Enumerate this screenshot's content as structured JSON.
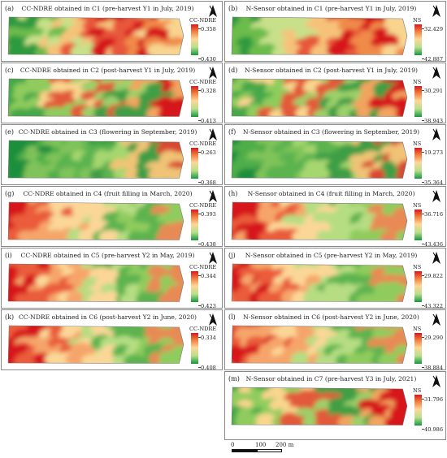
{
  "panels": [
    {
      "label": "(a)",
      "title": "CC-NDRE obtained in C1 (pre-harvest Y1 in July, 2019)",
      "legend": {
        "name": "CC-NDRE",
        "max": "0.358",
        "min": "0.430"
      },
      "palette": "green-left"
    },
    {
      "label": "(b)",
      "title": "N-Sensor obtained in C1 (pre-harvest Y1 in July, 2019)",
      "legend": {
        "name": "NS",
        "max": "32.429",
        "min": "42.887"
      },
      "palette": "green-left"
    },
    {
      "label": "(c)",
      "title": "CC-NDRE obtained in C2 (post-harvest Y1 in July, 2019)",
      "legend": {
        "name": "CC-NDRE",
        "max": "0.328",
        "min": "0.413"
      },
      "palette": "green-mixed"
    },
    {
      "label": "(d)",
      "title": "N-Sensor obtained in C2 (post-harvest Y1 in July, 2019)",
      "legend": {
        "name": "NS",
        "max": "30.291",
        "min": "38.943"
      },
      "palette": "green-mixed"
    },
    {
      "label": "(e)",
      "title": "CC-NDRE obtained in C3 (flowering in September, 2019)",
      "legend": {
        "name": "CC-NDRE",
        "max": "0.263",
        "min": "0.368"
      },
      "palette": "green"
    },
    {
      "label": "(f)",
      "title": "N-Sensor obtained in C3 (flowering  in September, 2019)",
      "legend": {
        "name": "NS",
        "max": "19.273",
        "min": "35.364"
      },
      "palette": "green"
    },
    {
      "label": "(g)",
      "title": "CC-NDRE obtained in C4 (fruit filling in March, 2020)",
      "legend": {
        "name": "CC-NDRE",
        "max": "0.393",
        "min": "0.438"
      },
      "palette": "red-left"
    },
    {
      "label": "(h)",
      "title": "N-Sensor obtained in C4 (fruit filling in March, 2020)",
      "legend": {
        "name": "NS",
        "max": "36.716",
        "min": "43.436"
      },
      "palette": "red-left"
    },
    {
      "label": "(i)",
      "title": "CC-NDRE obtained in C5 (pre-harvest Y2 in May, 2019)",
      "legend": {
        "name": "CC-NDRE",
        "max": "0.344",
        "min": "0.423"
      },
      "palette": "red-left"
    },
    {
      "label": "(j)",
      "title": "N-Sensor obtained in C5 (pre-harvest Y2 in May, 2019)",
      "legend": {
        "name": "NS",
        "max": "29.822",
        "min": "43.322"
      },
      "palette": "red-left"
    },
    {
      "label": "(k)",
      "title": "CC-NDRE obtained in C6 (post-harvest Y2 in June, 2020)",
      "legend": {
        "name": "CC-NDRE",
        "max": "0.334",
        "min": "0.408"
      },
      "palette": "red-left"
    },
    {
      "label": "(l)",
      "title": "N-Sensor obtained in C6 (post-harvest Y2 in June, 2020)",
      "legend": {
        "name": "NS",
        "max": "29.290",
        "min": "38.884"
      },
      "palette": "red-left"
    },
    {
      "label": "(m)",
      "title": "N-Sensor obtained in C7 (pre-harvest Y3 in July, 2021)",
      "legend": {
        "name": "NS",
        "max": "31.796",
        "min": "40.986"
      },
      "palette": "green-mixed"
    }
  ],
  "scale": {
    "ticks": [
      "0",
      "100",
      "200 m"
    ]
  },
  "colors": {
    "high": "#d7191c",
    "mid": "#fdd79a",
    "low": "#1a9641"
  }
}
